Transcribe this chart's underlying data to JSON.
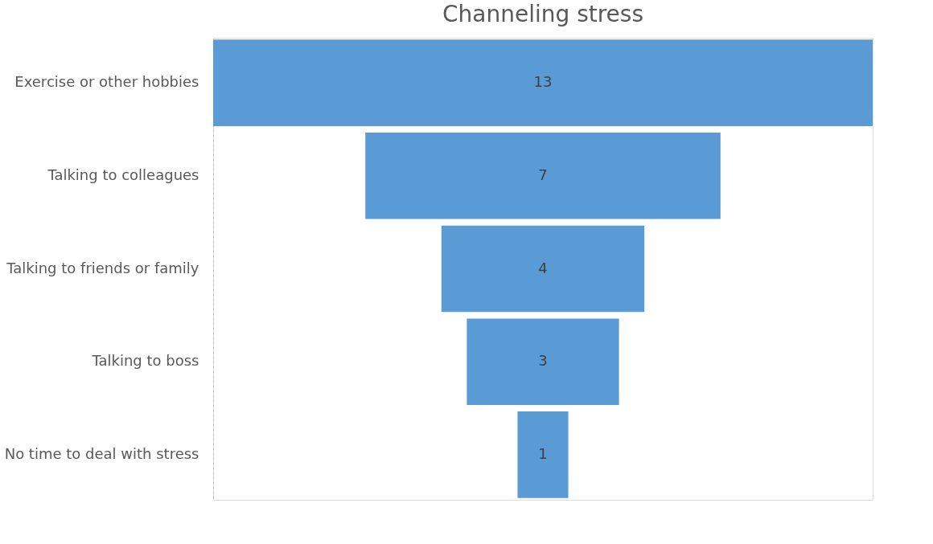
{
  "chart_data": {
    "type": "other",
    "title": "Channeling stress",
    "categories": [
      "Exercise or other hobbies",
      "Talking to colleagues",
      "Talking to friends or family",
      "Talking to boss",
      "No time to deal with stress"
    ],
    "values": [
      13,
      7,
      4,
      3,
      1
    ],
    "color": "#5b9bd5",
    "data_labels": true
  }
}
